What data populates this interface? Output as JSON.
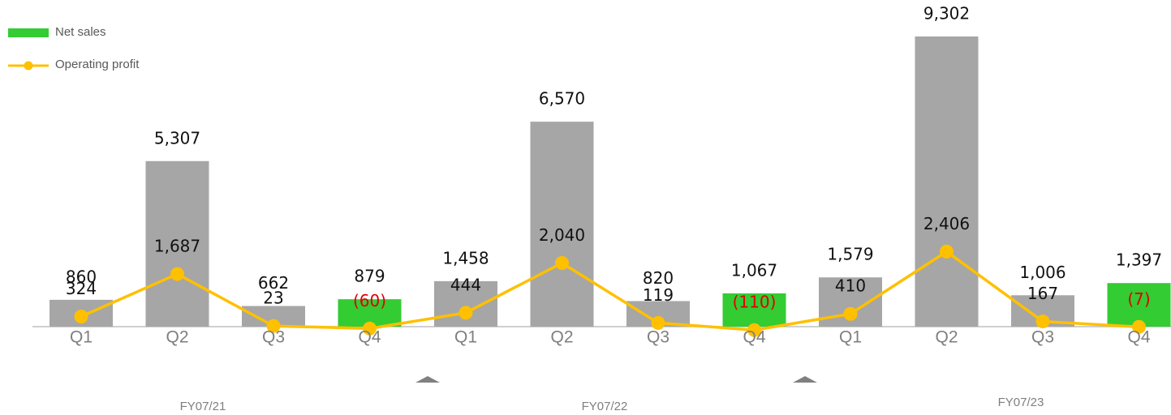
{
  "chart_data": {
    "type": "bar",
    "categories": [
      "Q1",
      "Q2",
      "Q3",
      "Q4",
      "Q1",
      "Q2",
      "Q3",
      "Q4",
      "Q1",
      "Q2",
      "Q3",
      "Q4"
    ],
    "groups": [
      "FY07/21",
      "FY07/22",
      "FY07/23"
    ],
    "negative_label_color": "#e00000",
    "series": [
      {
        "name": "Net sales",
        "type": "bar",
        "color": "#33cc33",
        "colors": [
          "#a6a6a6",
          "#a6a6a6",
          "#a6a6a6",
          "#33cc33",
          "#a6a6a6",
          "#a6a6a6",
          "#a6a6a6",
          "#33cc33",
          "#a6a6a6",
          "#a6a6a6",
          "#a6a6a6",
          "#33cc33"
        ],
        "values": [
          860,
          5307,
          662,
          879,
          1458,
          6570,
          820,
          1067,
          1579,
          9302,
          1006,
          1397
        ],
        "value_labels": [
          "860",
          "5,307",
          "662",
          "879",
          "1,458",
          "6,570",
          "820",
          "1,067",
          "1,579",
          "9,302",
          "1,006",
          "1,397"
        ]
      },
      {
        "name": "Operating profit",
        "type": "line",
        "color": "#ffc000",
        "values": [
          324,
          1687,
          23,
          -60,
          444,
          2040,
          119,
          -110,
          410,
          2406,
          167,
          -7
        ],
        "value_labels": [
          "324",
          "1,687",
          "23",
          "(60)",
          "444",
          "2,040",
          "119",
          "(110)",
          "410",
          "2,406",
          "167",
          "(7)"
        ]
      }
    ]
  }
}
